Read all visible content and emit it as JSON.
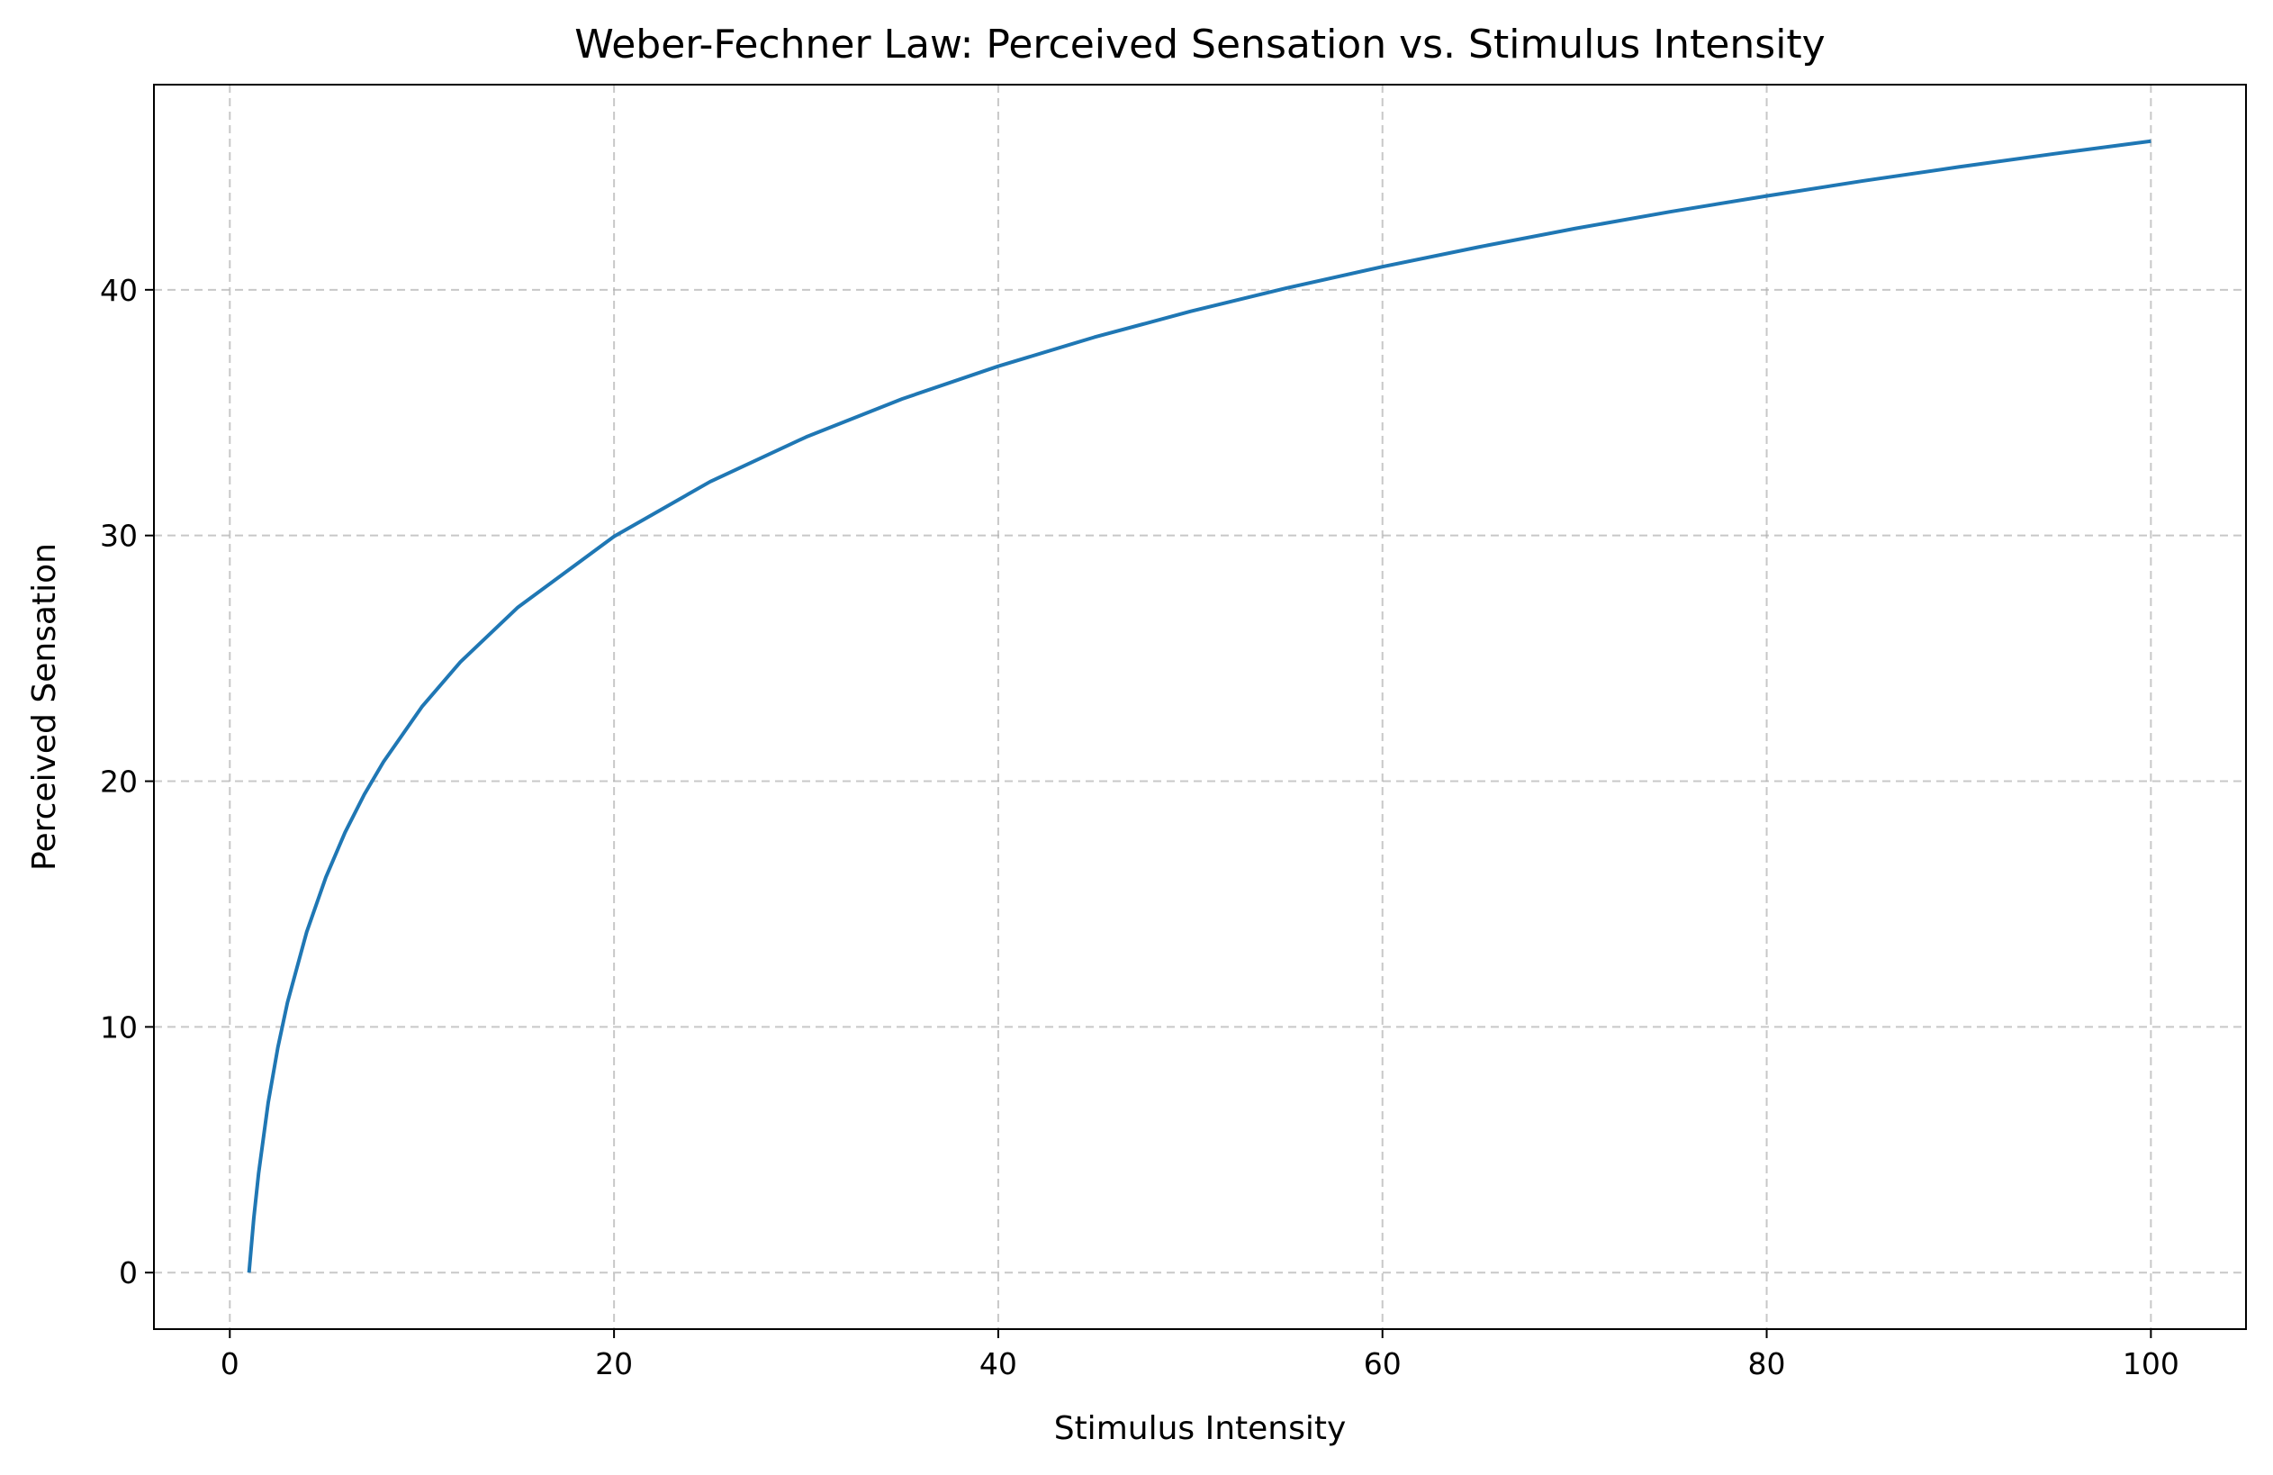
{
  "chart_data": {
    "type": "line",
    "title": "Weber-Fechner Law: Perceived Sensation vs. Stimulus Intensity",
    "xlabel": "Stimulus Intensity",
    "ylabel": "Perceived Sensation",
    "xlim": [
      -3.95,
      104.95
    ],
    "ylim": [
      -2.3,
      48.35
    ],
    "grid": true,
    "legend": "none",
    "xticks": [
      0,
      20,
      40,
      60,
      80,
      100
    ],
    "yticks": [
      0,
      10,
      20,
      30,
      40
    ],
    "series": [
      {
        "color": "#1f77b4",
        "points": [
          [
            1,
            0.0
          ],
          [
            1.25,
            2.23
          ],
          [
            1.5,
            4.05
          ],
          [
            2,
            6.93
          ],
          [
            2.5,
            9.16
          ],
          [
            3,
            10.99
          ],
          [
            4,
            13.86
          ],
          [
            5,
            16.09
          ],
          [
            6,
            17.92
          ],
          [
            7,
            19.46
          ],
          [
            8,
            20.79
          ],
          [
            10,
            23.03
          ],
          [
            12,
            24.85
          ],
          [
            15,
            27.08
          ],
          [
            20,
            29.96
          ],
          [
            25,
            32.19
          ],
          [
            30,
            34.01
          ],
          [
            35,
            35.56
          ],
          [
            40,
            36.89
          ],
          [
            45,
            38.07
          ],
          [
            50,
            39.12
          ],
          [
            55,
            40.07
          ],
          [
            60,
            40.94
          ],
          [
            65,
            41.74
          ],
          [
            70,
            42.49
          ],
          [
            75,
            43.18
          ],
          [
            80,
            43.82
          ],
          [
            85,
            44.43
          ],
          [
            90,
            45.0
          ],
          [
            95,
            45.54
          ],
          [
            100,
            46.05
          ]
        ]
      }
    ]
  }
}
